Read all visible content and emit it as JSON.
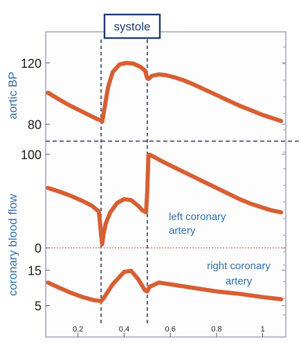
{
  "chart_data": [
    {
      "panel": "aortic-bp",
      "type": "line",
      "ylabel": "aortic BP",
      "ylim": [
        72,
        134
      ],
      "yticks": [
        80,
        120
      ],
      "xlim": [
        0.06,
        1.1
      ],
      "series": [
        {
          "x": [
            0.07,
            0.12,
            0.16,
            0.2,
            0.24,
            0.28,
            0.3,
            0.305,
            0.31,
            0.33,
            0.35,
            0.38,
            0.41,
            0.44,
            0.47,
            0.49,
            0.5,
            0.505,
            0.52,
            0.55,
            0.58,
            0.62,
            0.66,
            0.7,
            0.75,
            0.8,
            0.85,
            0.9,
            0.95,
            1.0,
            1.04,
            1.08
          ],
          "y": [
            100.5,
            96,
            92.5,
            89.5,
            86.5,
            83.5,
            82.5,
            81.5,
            86,
            104,
            114,
            119,
            120,
            119.5,
            117.5,
            115,
            110,
            109.5,
            111.5,
            112.5,
            112,
            110.5,
            108.5,
            106,
            102.5,
            99,
            95.5,
            92,
            89,
            86,
            84,
            82
          ]
        }
      ]
    },
    {
      "panel": "left-coronary",
      "type": "line",
      "ylim": [
        -5,
        108
      ],
      "yticks": [
        0,
        100
      ],
      "xlim": [
        0.06,
        1.1
      ],
      "series": [
        {
          "name": "left coronary artery",
          "x": [
            0.07,
            0.12,
            0.17,
            0.22,
            0.26,
            0.29,
            0.295,
            0.3,
            0.305,
            0.31,
            0.32,
            0.34,
            0.37,
            0.4,
            0.43,
            0.46,
            0.48,
            0.495,
            0.5,
            0.505,
            0.51,
            0.53,
            0.56,
            0.6,
            0.65,
            0.7,
            0.75,
            0.8,
            0.85,
            0.9,
            0.95,
            1.0,
            1.04,
            1.08
          ],
          "y": [
            64,
            60,
            55.5,
            50,
            45,
            39,
            28,
            14,
            4,
            14,
            26,
            38,
            48,
            52,
            51,
            45,
            40,
            38,
            60,
            99,
            99.5,
            97,
            93,
            88,
            82,
            76,
            70,
            64,
            58,
            52,
            47,
            43,
            40,
            38
          ]
        }
      ]
    },
    {
      "panel": "right-coronary",
      "type": "line",
      "ylim": [
        2,
        18
      ],
      "yticks": [
        5,
        15
      ],
      "xlim": [
        0.06,
        1.1
      ],
      "xticks": [
        0.2,
        0.4,
        0.6,
        0.8,
        1
      ],
      "series": [
        {
          "name": "right coronary artery",
          "x": [
            0.07,
            0.12,
            0.17,
            0.22,
            0.27,
            0.3,
            0.31,
            0.35,
            0.4,
            0.43,
            0.46,
            0.49,
            0.5,
            0.51,
            0.55,
            0.6,
            0.7,
            0.8,
            0.9,
            1.0,
            1.08
          ],
          "y": [
            11.5,
            10,
            8.6,
            7.4,
            6.5,
            6.3,
            7,
            11,
            14.5,
            14.8,
            12.5,
            9.3,
            9,
            10.3,
            11.5,
            11,
            10,
            9,
            8.3,
            7.4,
            6.8
          ]
        }
      ]
    }
  ],
  "labels": {
    "systole": "systole",
    "aortic_bp": "aortic BP",
    "coronary_flow": "coronary blood flow",
    "left_line1": "left coronary",
    "left_line2": "artery",
    "right_line1": "right coronary",
    "right_line2": "artery"
  },
  "colors": {
    "trace": "#d65f33",
    "label_blue": "#2e6ea8",
    "frame": "#8a8aa8",
    "dash": "#343a5c",
    "zero_line": "#e66a6a",
    "systole_box": "#1f3a6b"
  }
}
